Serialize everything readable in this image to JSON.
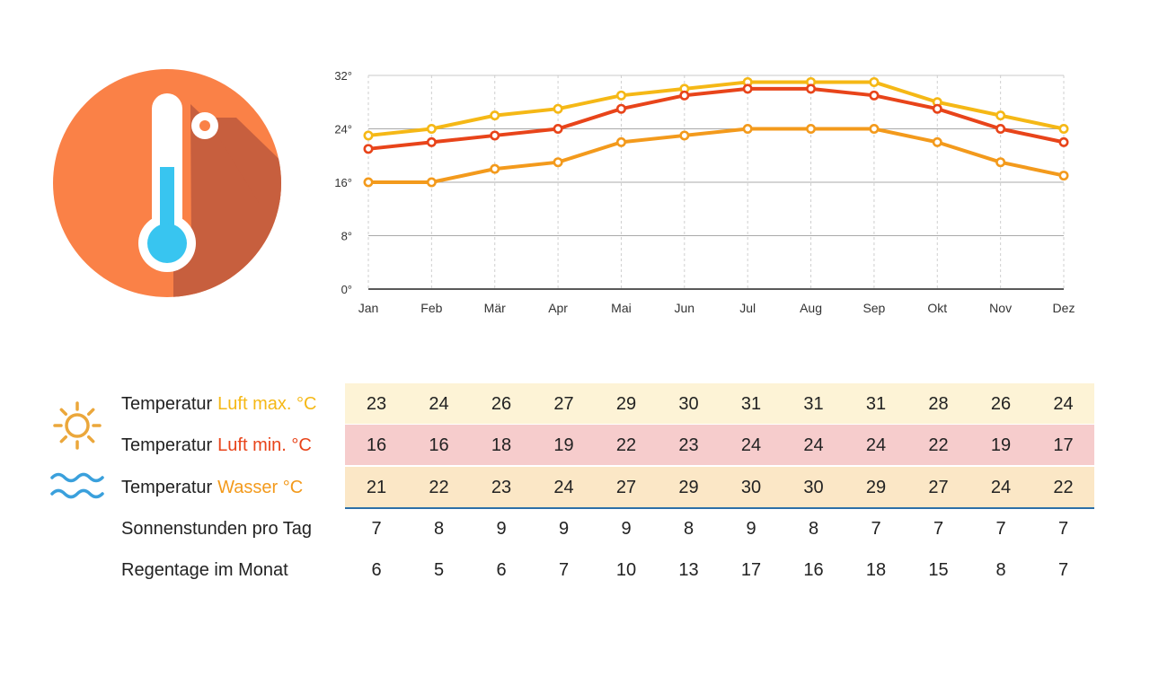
{
  "colors": {
    "badge_circle": "#fa8147",
    "badge_shadow": "#c75f3e",
    "mercury": "#38c5f0",
    "air_max": "#f5b816",
    "air_min": "#e8441a",
    "water": "#f39a1c",
    "row_max_bg": "#fdf3d6",
    "row_min_bg": "#f6cccc",
    "row_water_bg": "#fbe7c6",
    "divider": "#2c6fa8",
    "wave_icon": "#3aa0dc",
    "sun_icon": "#eba73b"
  },
  "icons": {
    "badge": "thermometer-icon",
    "max_row": "sun-icon",
    "water_row": "waves-icon"
  },
  "chart_data": {
    "type": "line",
    "categories": [
      "Jan",
      "Feb",
      "Mär",
      "Apr",
      "Mai",
      "Jun",
      "Jul",
      "Aug",
      "Sep",
      "Okt",
      "Nov",
      "Dez"
    ],
    "series": [
      {
        "key": "air_max",
        "color": "#f5b816",
        "values": [
          23,
          24,
          26,
          27,
          29,
          30,
          31,
          31,
          31,
          28,
          26,
          24
        ]
      },
      {
        "key": "water",
        "color": "#e8441a",
        "values": [
          21,
          22,
          23,
          24,
          27,
          29,
          30,
          30,
          29,
          27,
          24,
          22
        ]
      },
      {
        "key": "air_min",
        "color": "#f39a1c",
        "values": [
          16,
          16,
          18,
          19,
          22,
          23,
          24,
          24,
          24,
          22,
          19,
          17
        ]
      }
    ],
    "yticks": [
      "0°",
      "8°",
      "16°",
      "24°",
      "32°"
    ],
    "ylim": [
      0,
      32
    ],
    "grid": true
  },
  "table": {
    "rows": [
      {
        "key": "air_max",
        "prefix": "Temperatur",
        "label": "Luft max. °C",
        "icon": "sun-icon",
        "values": [
          "23",
          "24",
          "26",
          "27",
          "29",
          "30",
          "31",
          "31",
          "31",
          "28",
          "26",
          "24"
        ]
      },
      {
        "key": "air_min",
        "prefix": "Temperatur",
        "label": "Luft min. °C",
        "values": [
          "16",
          "16",
          "18",
          "19",
          "22",
          "23",
          "24",
          "24",
          "24",
          "22",
          "19",
          "17"
        ]
      },
      {
        "key": "water",
        "prefix": "Temperatur",
        "label": "Wasser °C",
        "icon": "waves-icon",
        "values": [
          "21",
          "22",
          "23",
          "24",
          "27",
          "29",
          "30",
          "30",
          "29",
          "27",
          "24",
          "22"
        ]
      },
      {
        "key": "sun_hours",
        "label": "Sonnenstunden pro Tag",
        "values": [
          "7",
          "8",
          "9",
          "9",
          "9",
          "8",
          "9",
          "8",
          "7",
          "7",
          "7",
          "7"
        ]
      },
      {
        "key": "rain_days",
        "label": "Regentage im Monat",
        "values": [
          "6",
          "5",
          "6",
          "7",
          "10",
          "13",
          "17",
          "16",
          "18",
          "15",
          "8",
          "7"
        ]
      }
    ]
  }
}
